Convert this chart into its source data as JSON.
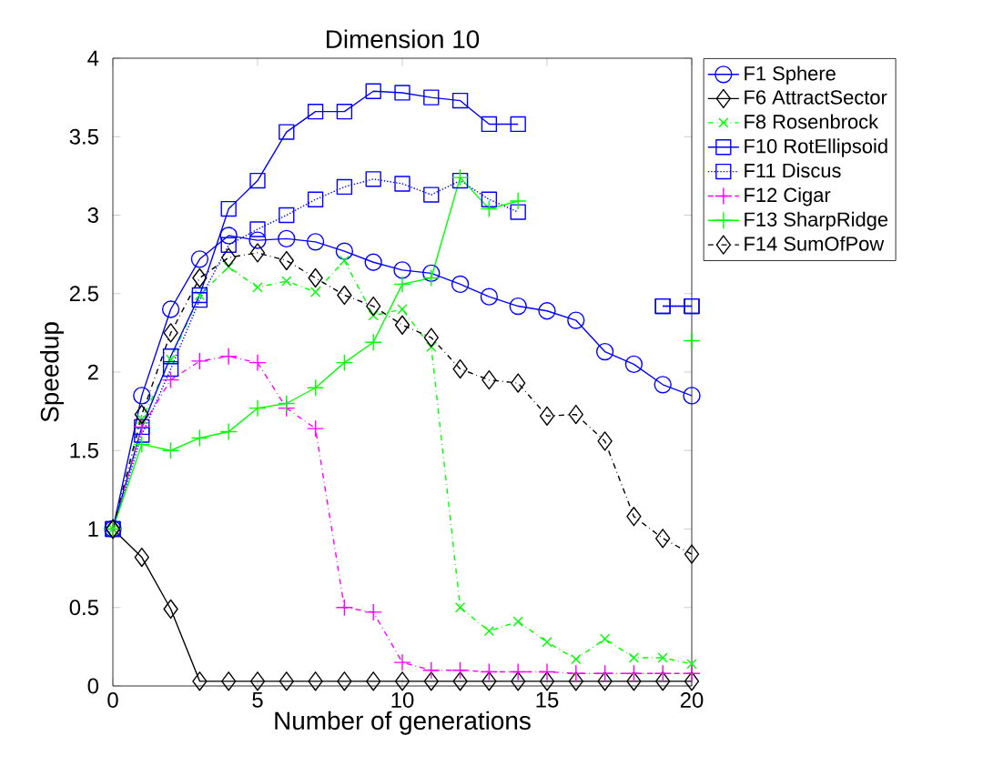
{
  "chart_data": {
    "type": "line",
    "title": "Dimension 10",
    "xlabel": "Number of generations",
    "ylabel": "Speedup",
    "x": [
      0,
      1,
      2,
      3,
      4,
      5,
      6,
      7,
      8,
      9,
      10,
      11,
      12,
      13,
      14,
      15,
      16,
      17,
      18,
      19,
      20
    ],
    "xlim": [
      0,
      20
    ],
    "xticks": [
      0,
      5,
      10,
      15,
      20
    ],
    "ylim": [
      0,
      4
    ],
    "yticks": [
      0,
      0.5,
      1,
      1.5,
      2,
      2.5,
      3,
      3.5,
      4
    ],
    "grid": false,
    "legend": "top right",
    "series": [
      {
        "name": "F1 Sphere",
        "color": "#0000ff",
        "marker": "circle",
        "line_style": "solid",
        "values": [
          1.0,
          1.85,
          2.4,
          2.72,
          2.87,
          2.84,
          2.85,
          2.83,
          2.77,
          2.7,
          2.65,
          2.63,
          2.56,
          2.48,
          2.42,
          2.39,
          2.33,
          2.13,
          2.05,
          1.92,
          1.85
        ]
      },
      {
        "name": "F6 AttractSector",
        "color": "#000000",
        "marker": "diamond",
        "line_style": "solid",
        "values": [
          1.0,
          0.82,
          0.49,
          0.03,
          0.03,
          0.03,
          0.03,
          0.03,
          0.03,
          0.03,
          0.03,
          0.03,
          0.03,
          0.03,
          0.03,
          0.03,
          0.03,
          0.03,
          0.03,
          0.03,
          0.03
        ]
      },
      {
        "name": "F8 Rosenbrock",
        "color": "#00ff00",
        "marker": "cross",
        "line_style": "dashdot",
        "values": [
          1.0,
          1.7,
          2.08,
          2.49,
          2.67,
          2.54,
          2.58,
          2.51,
          2.71,
          2.36,
          2.4,
          2.16,
          0.5,
          0.35,
          0.41,
          0.28,
          0.17,
          0.3,
          0.18,
          0.18,
          0.14
        ]
      },
      {
        "name": "F10 RotEllipsoid",
        "color": "#0000ff",
        "marker": "square",
        "line_style": "solid",
        "values": [
          1.0,
          1.65,
          2.1,
          2.49,
          3.04,
          3.22,
          3.53,
          3.66,
          3.66,
          3.79,
          3.78,
          3.75,
          3.73,
          3.58,
          3.58,
          null,
          null,
          null,
          null,
          2.42,
          2.42
        ]
      },
      {
        "name": "F11 Discus",
        "color": "#0000ff",
        "marker": "square",
        "line_style": "dotted",
        "values": [
          1.0,
          1.6,
          2.02,
          2.46,
          2.81,
          2.91,
          3.0,
          3.1,
          3.18,
          3.23,
          3.2,
          3.13,
          3.22,
          3.1,
          3.02,
          null,
          null,
          null,
          null,
          2.42,
          2.42
        ]
      },
      {
        "name": "F12 Cigar",
        "color": "#ff00ff",
        "marker": "plus",
        "line_style": "dashdot",
        "values": [
          1.0,
          1.65,
          1.95,
          2.07,
          2.1,
          2.06,
          1.77,
          1.64,
          0.5,
          0.47,
          0.15,
          0.1,
          0.1,
          0.09,
          0.09,
          0.09,
          0.08,
          0.08,
          0.08,
          0.08,
          0.08
        ]
      },
      {
        "name": "F13 SharpRidge",
        "color": "#00ff00",
        "marker": "plus",
        "line_style": "solid",
        "values": [
          1.0,
          1.54,
          1.5,
          1.58,
          1.62,
          1.77,
          1.8,
          1.9,
          2.06,
          2.19,
          2.56,
          2.6,
          3.24,
          3.04,
          3.09,
          null,
          null,
          null,
          null,
          null,
          2.2
        ]
      },
      {
        "name": "F14 SumOfPow",
        "color": "#000000",
        "marker": "diamond",
        "line_style": "dashdot",
        "values": [
          1.0,
          1.73,
          2.25,
          2.6,
          2.73,
          2.76,
          2.71,
          2.6,
          2.49,
          2.42,
          2.3,
          2.22,
          2.02,
          1.95,
          1.93,
          1.72,
          1.73,
          1.56,
          1.08,
          0.94,
          0.84
        ]
      }
    ]
  }
}
